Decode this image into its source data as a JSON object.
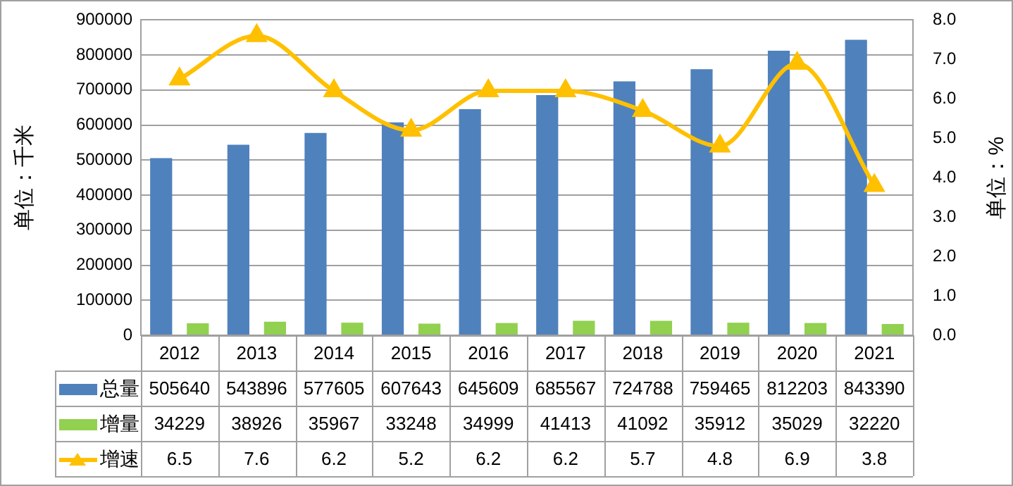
{
  "chart_data": {
    "type": "bar",
    "categories": [
      "2012",
      "2013",
      "2014",
      "2015",
      "2016",
      "2017",
      "2018",
      "2019",
      "2020",
      "2021"
    ],
    "series": [
      {
        "name": "总量",
        "color": "#4f81bd",
        "values": [
          505640,
          543896,
          577605,
          607643,
          645609,
          685567,
          724788,
          759465,
          812203,
          843390
        ]
      },
      {
        "name": "增量",
        "color": "#92d050",
        "values": [
          34229,
          38926,
          35967,
          33248,
          34999,
          41413,
          41092,
          35912,
          35029,
          32220
        ]
      },
      {
        "name": "增速",
        "type": "line",
        "axis": "y2",
        "color": "#ffc000",
        "values": [
          6.5,
          7.6,
          6.2,
          5.2,
          6.2,
          6.2,
          5.7,
          4.8,
          6.9,
          3.8
        ]
      }
    ],
    "ylabel": "单位：千米",
    "y2label": "单位：%",
    "ylim": [
      0,
      900000
    ],
    "yticks": [
      0,
      100000,
      200000,
      300000,
      400000,
      500000,
      600000,
      700000,
      800000,
      900000
    ],
    "y2lim": [
      0,
      8
    ],
    "y2ticks": [
      {
        "value": 0,
        "label": "0.0"
      },
      {
        "value": 1,
        "label": "1.0"
      },
      {
        "value": 2,
        "label": "2.0"
      },
      {
        "value": 3,
        "label": "3.0"
      },
      {
        "value": 4,
        "label": "4.0"
      },
      {
        "value": 5,
        "label": "5.0"
      },
      {
        "value": 6,
        "label": "6.0"
      },
      {
        "value": 7,
        "label": "7.0"
      },
      {
        "value": 8,
        "label": "8.0"
      }
    ],
    "grid": "y",
    "legend": "bottom",
    "marker": "triangle",
    "data_labels": true
  }
}
